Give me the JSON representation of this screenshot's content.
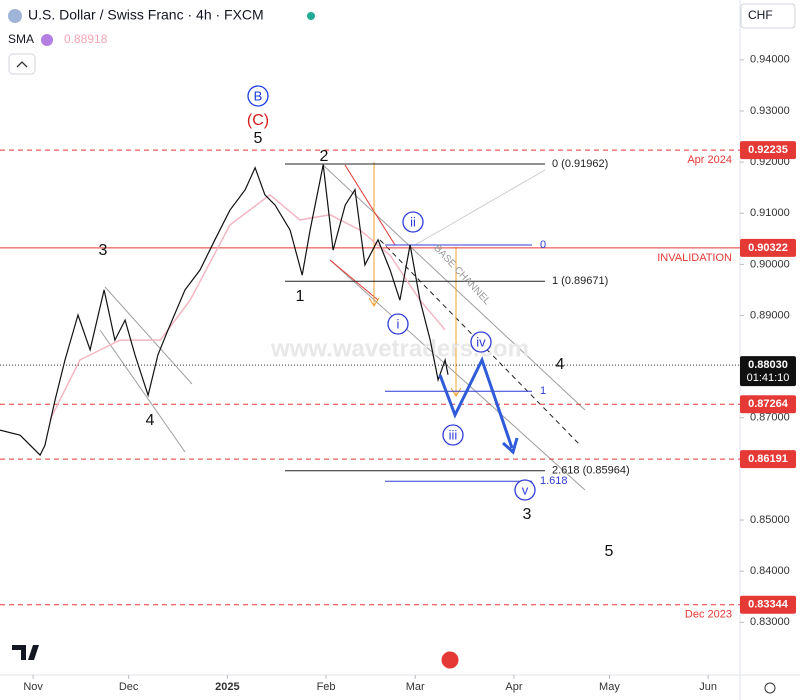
{
  "header": {
    "sma_value": "0.88918",
    "currency": "CHF",
    "watermark": "www.wavetraders.com"
  },
  "chart_data": {
    "type": "line",
    "series": [
      {
        "name": "U.S. Dollar / Swiss Franc · 4h · FXCM",
        "color": "#111111",
        "x": [
          -10.4,
          -4.1,
          2.2,
          3.7,
          6.9,
          10.0,
          14.1,
          17.9,
          22.3,
          25.7,
          28.9,
          32.0,
          36.1,
          39.2,
          42.4,
          47.7,
          52.4,
          57.1,
          61.8,
          66.6,
          69.7,
          72.8,
          76.0,
          80.7,
          84.5,
          87.0,
          91.1,
          94.2,
          98.0,
          101.1,
          104.2,
          108.3,
          112.1,
          115.2,
          118.4,
          121.5,
          124.7,
          127.2,
          129.4,
          130.3
        ],
        "values": [
          0.8676,
          0.8666,
          0.8627,
          0.8646,
          0.8735,
          0.8813,
          0.8901,
          0.8833,
          0.895,
          0.8852,
          0.8891,
          0.8823,
          0.8744,
          0.8823,
          0.8872,
          0.895,
          0.8989,
          0.9048,
          0.9106,
          0.9146,
          0.9189,
          0.9136,
          0.9116,
          0.9067,
          0.8979,
          0.9067,
          0.9195,
          0.9028,
          0.9116,
          0.9146,
          0.8999,
          0.9048,
          0.8989,
          0.893,
          0.9038,
          0.893,
          0.8852,
          0.8774,
          0.8813,
          0.8784
        ]
      },
      {
        "name": "SMA",
        "color": "#f4b6c2",
        "x": [
          5.3,
          14.7,
          27.3,
          39.9,
          49.3,
          61.8,
          74.4,
          83.8,
          93.3,
          102.7,
          112.1,
          121.5,
          129.4
        ],
        "values": [
          0.8696,
          0.8813,
          0.8852,
          0.8852,
          0.893,
          0.9077,
          0.9136,
          0.9087,
          0.9097,
          0.9067,
          0.9018,
          0.893,
          0.8872
        ]
      }
    ],
    "xlim": [
      -10.4,
      222
    ],
    "ylim": [
      0.8197,
      0.9517
    ],
    "xticks": [
      {
        "value": 0,
        "label": "Nov"
      },
      {
        "value": 30,
        "label": "Dec"
      },
      {
        "value": 61,
        "label": "2025"
      },
      {
        "value": 92,
        "label": "Feb"
      },
      {
        "value": 120,
        "label": "Mar"
      },
      {
        "value": 151,
        "label": "Apr"
      },
      {
        "value": 181,
        "label": "May"
      },
      {
        "value": 212,
        "label": "Jun"
      }
    ],
    "yticks": [
      {
        "value": 0.94,
        "label": "0.94000"
      },
      {
        "value": 0.93,
        "label": "0.93000"
      },
      {
        "value": 0.92,
        "label": "0.92000"
      },
      {
        "value": 0.91,
        "label": "0.91000"
      },
      {
        "value": 0.9,
        "label": "0.90000"
      },
      {
        "value": 0.89,
        "label": "0.89000"
      },
      {
        "value": 0.87,
        "label": "0.87000"
      },
      {
        "value": 0.85,
        "label": "0.85000"
      },
      {
        "value": 0.84,
        "label": "0.84000"
      },
      {
        "value": 0.83,
        "label": "0.83000"
      }
    ],
    "levels": [
      {
        "value": 0.92235,
        "value_label": "0.92235",
        "note": "Apr 2024",
        "style": "dashed"
      },
      {
        "value": 0.90322,
        "value_label": "0.90322",
        "note": "INVALIDATION",
        "style": "solid"
      },
      {
        "value": 0.87264,
        "value_label": "0.87264",
        "style": "dashed"
      },
      {
        "value": 0.86191,
        "value_label": "0.86191",
        "style": "dashed"
      },
      {
        "value": 0.83344,
        "value_label": "0.83344",
        "note": "Dec 2023",
        "style": "dashed"
      }
    ],
    "last_price": {
      "value": 0.8803,
      "value_label": "0.88030",
      "countdown": "01:41:10"
    },
    "fib": [
      {
        "value": 0.91962,
        "label": "0 (0.91962)"
      },
      {
        "value": 0.89671,
        "label": "1 (0.89671)"
      },
      {
        "value": 0.85964,
        "label": "2.618 (0.85964)"
      }
    ],
    "fib_blue": [
      {
        "value": 0.9038,
        "label": "0"
      },
      {
        "value": 0.8752,
        "label": "1"
      },
      {
        "value": 0.8576,
        "label": "1.618"
      }
    ],
    "waves": [
      "B",
      "(C)",
      "5",
      "2",
      "1",
      "3",
      "4",
      "ii",
      "i",
      "iv",
      "iii",
      "v",
      "4",
      "3",
      "5"
    ],
    "channel_label": "BASE CHANNEL"
  }
}
